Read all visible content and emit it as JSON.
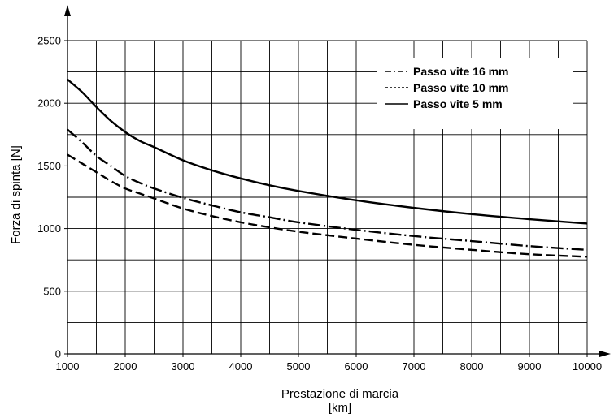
{
  "chart_data": {
    "type": "line",
    "xlabel": "Prestazione di marcia",
    "xunit": "[km]",
    "ylabel": "Forza di spinta [N]",
    "xlim": [
      1000,
      10000
    ],
    "ylim": [
      0,
      2500
    ],
    "x_ticks": [
      1000,
      2000,
      3000,
      4000,
      5000,
      6000,
      7000,
      8000,
      9000,
      10000
    ],
    "y_ticks": [
      0,
      500,
      1000,
      1500,
      2000,
      2500
    ],
    "grid": true,
    "legend_position": "top-right",
    "x": [
      1000,
      1250,
      1500,
      1750,
      2000,
      2250,
      2500,
      3000,
      3500,
      4000,
      4500,
      5000,
      6000,
      7000,
      8000,
      9000,
      10000
    ],
    "series": [
      {
        "name": "Passo vite 16 mm",
        "style": "dash-dot",
        "values": [
          1790,
          1690,
          1580,
          1500,
          1420,
          1365,
          1320,
          1245,
          1185,
          1130,
          1090,
          1050,
          990,
          940,
          900,
          860,
          830
        ]
      },
      {
        "name": "Passo vite 10 mm",
        "style": "dashed",
        "values": [
          1590,
          1520,
          1450,
          1380,
          1320,
          1280,
          1240,
          1160,
          1100,
          1050,
          1010,
          975,
          920,
          870,
          830,
          795,
          775
        ]
      },
      {
        "name": "Passo vite 5 mm",
        "style": "solid",
        "values": [
          2190,
          2090,
          1970,
          1860,
          1770,
          1700,
          1650,
          1545,
          1465,
          1400,
          1345,
          1300,
          1225,
          1165,
          1115,
          1075,
          1040
        ]
      }
    ],
    "colors": {
      "line": "#000000",
      "grid": "#000000",
      "background": "#ffffff"
    }
  }
}
